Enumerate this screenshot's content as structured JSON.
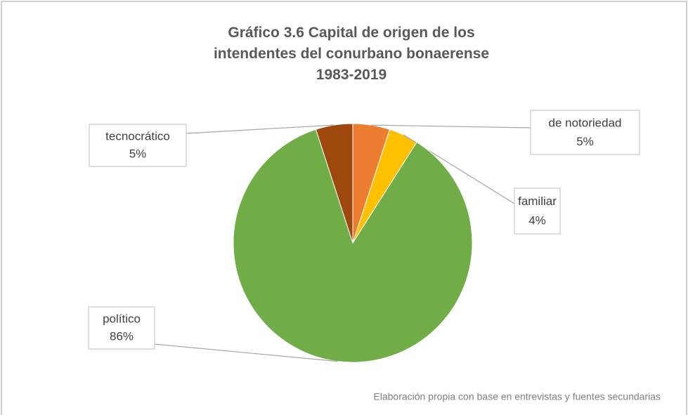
{
  "chart_data": {
    "type": "pie",
    "title": "Gráfico 3.6 Capital de origen de los intendentes del conurbano bonaerense 1983-2019",
    "categories": [
      "de notoriedad",
      "familiar",
      "político",
      "tecnocrático"
    ],
    "values": [
      5,
      4,
      86,
      5
    ],
    "value_labels": [
      "5%",
      "4%",
      "86%",
      "5%"
    ],
    "colors": [
      "#ED7D31",
      "#FFC000",
      "#70AD47",
      "#9E480E"
    ],
    "source": "Elaboración propia con base en entrevistas y fuentes secundarias"
  }
}
